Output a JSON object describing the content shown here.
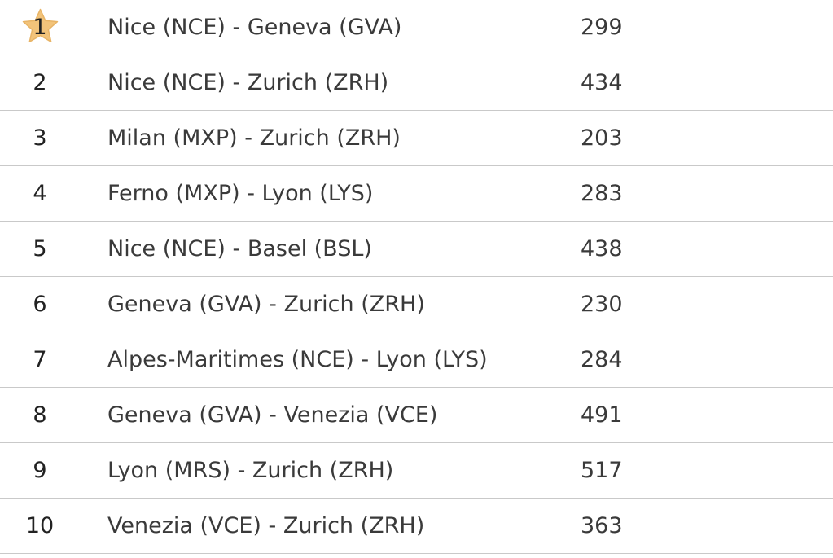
{
  "accent_star_color": "#f2c37a",
  "rows": [
    {
      "rank": "1",
      "route": "Nice (NCE) - Geneva (GVA)",
      "distance": "299",
      "starred": true
    },
    {
      "rank": "2",
      "route": "Nice (NCE) - Zurich (ZRH)",
      "distance": "434"
    },
    {
      "rank": "3",
      "route": "Milan (MXP) - Zurich (ZRH)",
      "distance": "203"
    },
    {
      "rank": "4",
      "route": "Ferno (MXP) - Lyon (LYS)",
      "distance": "283"
    },
    {
      "rank": "5",
      "route": "Nice (NCE) - Basel (BSL)",
      "distance": "438"
    },
    {
      "rank": "6",
      "route": "Geneva (GVA) - Zurich (ZRH)",
      "distance": "230"
    },
    {
      "rank": "7",
      "route": "Alpes-Maritimes (NCE) - Lyon (LYS)",
      "distance": "284"
    },
    {
      "rank": "8",
      "route": "Geneva (GVA) - Venezia (VCE)",
      "distance": "491"
    },
    {
      "rank": "9",
      "route": "Lyon (MRS) - Zurich (ZRH)",
      "distance": "517"
    },
    {
      "rank": "10",
      "route": "Venezia (VCE) - Zurich (ZRH)",
      "distance": "363"
    }
  ]
}
